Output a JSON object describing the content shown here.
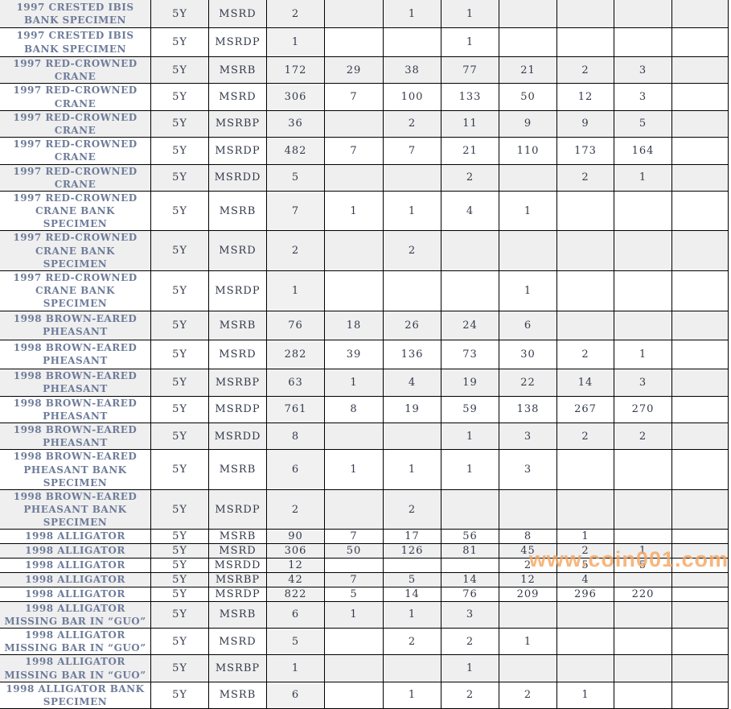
{
  "watermark": {
    "text": "www.coin001.com",
    "color": "#f7a55f"
  },
  "colors": {
    "row_alt_bg": "#efefef",
    "total_col_bg": "#f1f1f1",
    "grid_line": "#000000",
    "coin_name_text": "#6e7c9a",
    "value_text": "#333a4a"
  },
  "table": {
    "rows": [
      {
        "name": "1997 CRESTED IBIS BANK SPECIMEN",
        "denom": "5Y",
        "grade": "MSRD",
        "cells": [
          "2",
          "",
          "1",
          "1",
          "",
          "",
          "",
          ""
        ]
      },
      {
        "name": "1997 CRESTED IBIS BANK SPECIMEN",
        "denom": "5Y",
        "grade": "MSRDP",
        "cells": [
          "1",
          "",
          "",
          "1",
          "",
          "",
          "",
          ""
        ]
      },
      {
        "name": "1997 RED-CROWNED CRANE",
        "denom": "5Y",
        "grade": "MSRB",
        "cells": [
          "172",
          "29",
          "38",
          "77",
          "21",
          "2",
          "3",
          ""
        ]
      },
      {
        "name": "1997 RED-CROWNED CRANE",
        "denom": "5Y",
        "grade": "MSRD",
        "cells": [
          "306",
          "7",
          "100",
          "133",
          "50",
          "12",
          "3",
          ""
        ]
      },
      {
        "name": "1997 RED-CROWNED CRANE",
        "denom": "5Y",
        "grade": "MSRBP",
        "cells": [
          "36",
          "",
          "2",
          "11",
          "9",
          "9",
          "5",
          ""
        ]
      },
      {
        "name": "1997 RED-CROWNED CRANE",
        "denom": "5Y",
        "grade": "MSRDP",
        "cells": [
          "482",
          "7",
          "7",
          "21",
          "110",
          "173",
          "164",
          ""
        ]
      },
      {
        "name": "1997 RED-CROWNED CRANE",
        "denom": "5Y",
        "grade": "MSRDD",
        "cells": [
          "5",
          "",
          "",
          "2",
          "",
          "2",
          "1",
          ""
        ]
      },
      {
        "name": "1997 RED-CROWNED CRANE BANK SPECIMEN",
        "denom": "5Y",
        "grade": "MSRB",
        "cells": [
          "7",
          "1",
          "1",
          "4",
          "1",
          "",
          "",
          ""
        ]
      },
      {
        "name": "1997 RED-CROWNED CRANE BANK SPECIMEN",
        "denom": "5Y",
        "grade": "MSRD",
        "cells": [
          "2",
          "",
          "2",
          "",
          "",
          "",
          "",
          ""
        ]
      },
      {
        "name": "1997 RED-CROWNED CRANE BANK SPECIMEN",
        "denom": "5Y",
        "grade": "MSRDP",
        "cells": [
          "1",
          "",
          "",
          "",
          "1",
          "",
          "",
          ""
        ]
      },
      {
        "name": "1998 BROWN-EARED PHEASANT",
        "denom": "5Y",
        "grade": "MSRB",
        "cells": [
          "76",
          "18",
          "26",
          "24",
          "6",
          "",
          "",
          ""
        ]
      },
      {
        "name": "1998 BROWN-EARED PHEASANT",
        "denom": "5Y",
        "grade": "MSRD",
        "cells": [
          "282",
          "39",
          "136",
          "73",
          "30",
          "2",
          "1",
          ""
        ]
      },
      {
        "name": "1998 BROWN-EARED PHEASANT",
        "denom": "5Y",
        "grade": "MSRBP",
        "cells": [
          "63",
          "1",
          "4",
          "19",
          "22",
          "14",
          "3",
          ""
        ]
      },
      {
        "name": "1998 BROWN-EARED PHEASANT",
        "denom": "5Y",
        "grade": "MSRDP",
        "cells": [
          "761",
          "8",
          "19",
          "59",
          "138",
          "267",
          "270",
          ""
        ]
      },
      {
        "name": "1998 BROWN-EARED PHEASANT",
        "denom": "5Y",
        "grade": "MSRDD",
        "cells": [
          "8",
          "",
          "",
          "1",
          "3",
          "2",
          "2",
          ""
        ]
      },
      {
        "name": "1998 BROWN-EARED PHEASANT BANK SPECIMEN",
        "denom": "5Y",
        "grade": "MSRB",
        "cells": [
          "6",
          "1",
          "1",
          "1",
          "3",
          "",
          "",
          ""
        ]
      },
      {
        "name": "1998 BROWN-EARED PHEASANT BANK SPECIMEN",
        "denom": "5Y",
        "grade": "MSRDP",
        "cells": [
          "2",
          "",
          "2",
          "",
          "",
          "",
          "",
          ""
        ]
      },
      {
        "name": "1998 ALLIGATOR",
        "denom": "5Y",
        "grade": "MSRB",
        "cells": [
          "90",
          "7",
          "17",
          "56",
          "8",
          "1",
          "",
          ""
        ]
      },
      {
        "name": "1998 ALLIGATOR",
        "denom": "5Y",
        "grade": "MSRD",
        "cells": [
          "306",
          "50",
          "126",
          "81",
          "45",
          "2",
          "1",
          ""
        ]
      },
      {
        "name": "1998 ALLIGATOR",
        "denom": "5Y",
        "grade": "MSRDD",
        "cells": [
          "12",
          "",
          "",
          "",
          "2",
          "5",
          "5",
          ""
        ]
      },
      {
        "name": "1998 ALLIGATOR",
        "denom": "5Y",
        "grade": "MSRBP",
        "cells": [
          "42",
          "7",
          "5",
          "14",
          "12",
          "4",
          "",
          ""
        ]
      },
      {
        "name": "1998 ALLIGATOR",
        "denom": "5Y",
        "grade": "MSRDP",
        "cells": [
          "822",
          "5",
          "14",
          "76",
          "209",
          "296",
          "220",
          ""
        ]
      },
      {
        "name": "1998 ALLIGATOR MISSING BAR IN “GUO”",
        "denom": "5Y",
        "grade": "MSRB",
        "cells": [
          "6",
          "1",
          "1",
          "3",
          "",
          "",
          "",
          ""
        ]
      },
      {
        "name": "1998 ALLIGATOR MISSING BAR IN “GUO”",
        "denom": "5Y",
        "grade": "MSRD",
        "cells": [
          "5",
          "",
          "2",
          "2",
          "1",
          "",
          "",
          ""
        ]
      },
      {
        "name": "1998 ALLIGATOR MISSING BAR IN “GUO”",
        "denom": "5Y",
        "grade": "MSRBP",
        "cells": [
          "1",
          "",
          "",
          "1",
          "",
          "",
          "",
          ""
        ]
      },
      {
        "name": "1998 ALLIGATOR BANK SPECIMEN",
        "denom": "5Y",
        "grade": "MSRB",
        "cells": [
          "6",
          "",
          "1",
          "2",
          "2",
          "1",
          "",
          ""
        ]
      }
    ]
  }
}
